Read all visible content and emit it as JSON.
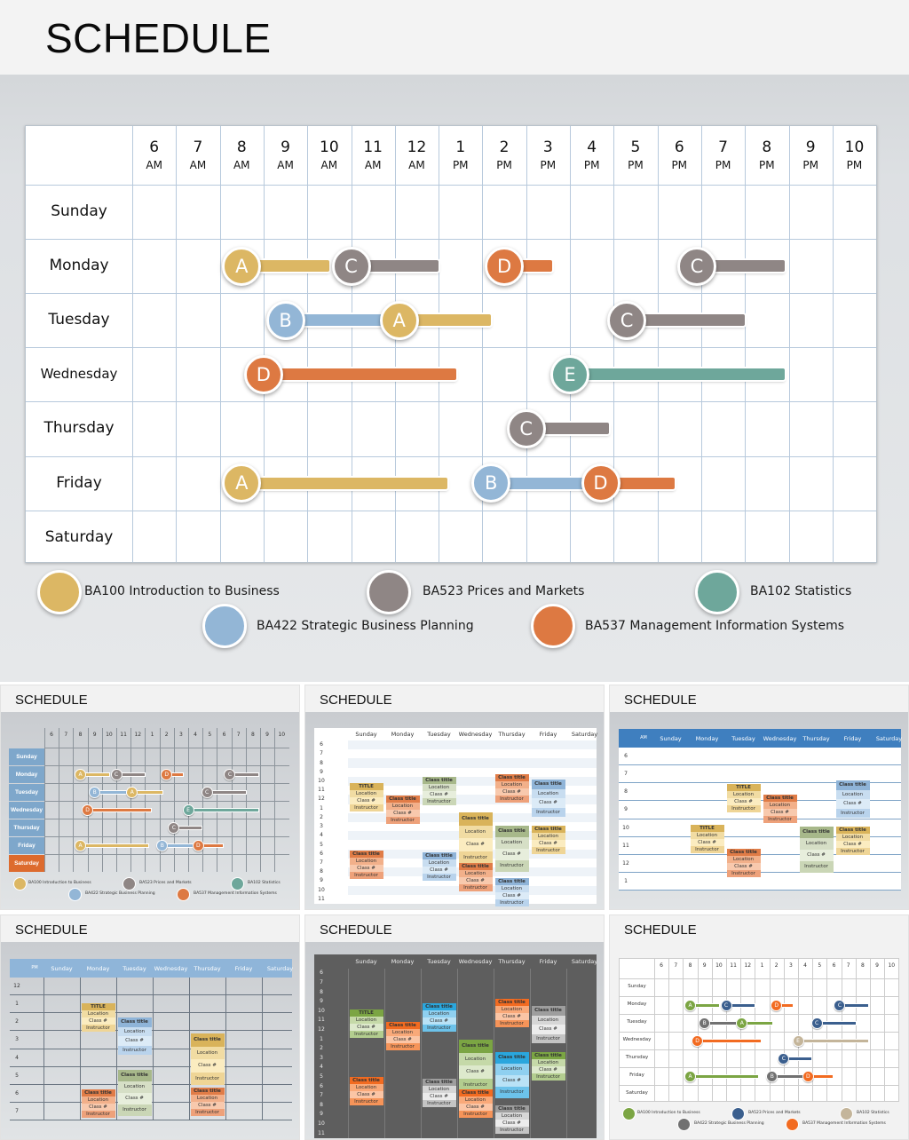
{
  "main": {
    "title": "SCHEDULE",
    "hours": [
      {
        "num": "6",
        "ampm": "AM"
      },
      {
        "num": "7",
        "ampm": "AM"
      },
      {
        "num": "8",
        "ampm": "AM"
      },
      {
        "num": "9",
        "ampm": "AM"
      },
      {
        "num": "10",
        "ampm": "AM"
      },
      {
        "num": "11",
        "ampm": "AM"
      },
      {
        "num": "12",
        "ampm": "AM"
      },
      {
        "num": "1",
        "ampm": "PM"
      },
      {
        "num": "2",
        "ampm": "PM"
      },
      {
        "num": "3",
        "ampm": "PM"
      },
      {
        "num": "4",
        "ampm": "PM"
      },
      {
        "num": "5",
        "ampm": "PM"
      },
      {
        "num": "6",
        "ampm": "PM"
      },
      {
        "num": "7",
        "ampm": "PM"
      },
      {
        "num": "8",
        "ampm": "PM"
      },
      {
        "num": "9",
        "ampm": "PM"
      },
      {
        "num": "10",
        "ampm": "PM"
      }
    ],
    "days": [
      "Sunday",
      "Monday",
      "Tuesday",
      "Wednesday",
      "Thursday",
      "Friday",
      "Saturday"
    ],
    "colors": {
      "A": "#dcb764",
      "B": "#93b6d6",
      "C": "#8f8685",
      "D": "#dd7942",
      "E": "#6ea79b"
    },
    "events": [
      {
        "day": 1,
        "letter": "A",
        "start": 8.0,
        "end": 10.0
      },
      {
        "day": 1,
        "letter": "C",
        "start": 10.5,
        "end": 12.5
      },
      {
        "day": 1,
        "letter": "D",
        "start": 14.0,
        "end": 15.1
      },
      {
        "day": 1,
        "letter": "C",
        "start": 18.4,
        "end": 20.4
      },
      {
        "day": 2,
        "letter": "B",
        "start": 9.0,
        "end": 11.2
      },
      {
        "day": 2,
        "letter": "A",
        "start": 11.6,
        "end": 13.7
      },
      {
        "day": 2,
        "letter": "C",
        "start": 16.8,
        "end": 19.5
      },
      {
        "day": 3,
        "letter": "D",
        "start": 8.5,
        "end": 12.9
      },
      {
        "day": 3,
        "letter": "E",
        "start": 15.5,
        "end": 20.4
      },
      {
        "day": 4,
        "letter": "C",
        "start": 14.5,
        "end": 16.4
      },
      {
        "day": 5,
        "letter": "A",
        "start": 8.0,
        "end": 12.7
      },
      {
        "day": 5,
        "letter": "B",
        "start": 13.7,
        "end": 15.9
      },
      {
        "day": 5,
        "letter": "D",
        "start": 16.2,
        "end": 17.9
      }
    ],
    "legend": [
      {
        "letter": "A",
        "label": "BA100 Introduction to Business"
      },
      {
        "letter": "C",
        "label": "BA523 Prices and Markets"
      },
      {
        "letter": "E",
        "label": "BA102 Statistics"
      },
      {
        "letter": "B",
        "label": "BA422 Strategic Business Planning"
      },
      {
        "letter": "D",
        "label": "BA537 Management Information Systems"
      }
    ]
  },
  "thumbnails": [
    {
      "title": "SCHEDULE",
      "variant": "timeline-blue-labels",
      "days": [
        "Sunday",
        "Monday",
        "Tuesday",
        "Wednesday",
        "Thursday",
        "Friday",
        "Saturday"
      ],
      "hours": [
        "6",
        "7",
        "8",
        "9",
        "10",
        "11",
        "12",
        "1",
        "2",
        "3",
        "4",
        "5",
        "6",
        "7",
        "8",
        "9",
        "10"
      ],
      "legend": [
        "BA100 Introduction to Business",
        "BA523 Prices and Markets",
        "BA102 Statistics",
        "BA422 Strategic Business Planning",
        "BA537 Management Information Systems"
      ]
    },
    {
      "title": "SCHEDULE",
      "variant": "weekly-cards-light",
      "days": [
        "Sunday",
        "Monday",
        "Tuesday",
        "Wednesday",
        "Thursday",
        "Friday",
        "Saturday"
      ],
      "hours": [
        "6",
        "7",
        "8",
        "9",
        "10",
        "11",
        "12",
        "1",
        "2",
        "3",
        "4",
        "5",
        "6",
        "7",
        "8",
        "9",
        "10",
        "11"
      ],
      "card_title": "Class title",
      "card_title_alt": "TITLE",
      "card_fields": [
        "Location",
        "Class #",
        "Instructor"
      ]
    },
    {
      "title": "SCHEDULE",
      "variant": "weekly-cards-blue-header-am",
      "period": "AM",
      "days": [
        "Sunday",
        "Monday",
        "Tuesday",
        "Wednesday",
        "Thursday",
        "Friday",
        "Saturday"
      ],
      "hours": [
        "6",
        "7",
        "8",
        "9",
        "10",
        "11",
        "12",
        "1"
      ],
      "card_title": "Class title",
      "card_title_alt": "TITLE",
      "card_fields": [
        "Location",
        "Class #",
        "Instructor"
      ]
    },
    {
      "title": "SCHEDULE",
      "variant": "weekly-cards-pm",
      "period": "PM",
      "days": [
        "Sunday",
        "Monday",
        "Tuesday",
        "Wednesday",
        "Thursday",
        "Friday",
        "Saturday"
      ],
      "hours": [
        "12",
        "1",
        "2",
        "3",
        "4",
        "5",
        "6",
        "7"
      ],
      "card_title": "Class title",
      "card_title_alt": "TITLE",
      "card_fields": [
        "Location",
        "Class #",
        "Instructor"
      ]
    },
    {
      "title": "SCHEDULE",
      "variant": "weekly-cards-dark",
      "days": [
        "Sunday",
        "Monday",
        "Tuesday",
        "Wednesday",
        "Thursday",
        "Friday",
        "Saturday"
      ],
      "hours": [
        "6",
        "7",
        "8",
        "9",
        "10",
        "11",
        "12",
        "1",
        "2",
        "3",
        "4",
        "5",
        "6",
        "7",
        "8",
        "9",
        "10",
        "11"
      ],
      "card_title": "Class title",
      "card_title_alt": "TITLE",
      "card_fields": [
        "Location",
        "Class #",
        "Instructor"
      ]
    },
    {
      "title": "SCHEDULE",
      "variant": "timeline-alt-colors",
      "days": [
        "Sunday",
        "Monday",
        "Tuesday",
        "Wednesday",
        "Thursday",
        "Friday",
        "Saturday"
      ],
      "hours": [
        "6",
        "7",
        "8",
        "9",
        "10",
        "11",
        "12",
        "1",
        "2",
        "3",
        "4",
        "5",
        "6",
        "7",
        "8",
        "9",
        "10"
      ],
      "colors": {
        "A": "#7ba543",
        "B": "#717171",
        "C": "#3b5f8e",
        "D": "#f26b21",
        "E": "#c4b59a"
      },
      "legend": [
        "BA100 Introduction to Business",
        "BA523 Prices and Markets",
        "BA102 Statistics",
        "BA422 Strategic Business Planning",
        "BA537 Management Information Systems"
      ]
    }
  ]
}
